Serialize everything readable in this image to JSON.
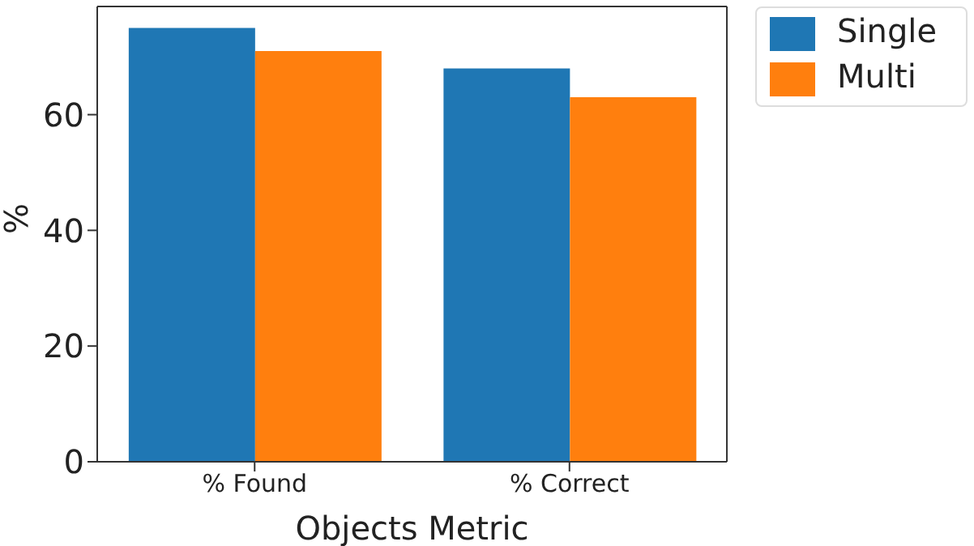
{
  "chart_data": {
    "type": "bar",
    "xlabel": "Objects Metric",
    "ylabel": "%",
    "categories": [
      "% Found",
      "% Correct"
    ],
    "series": [
      {
        "name": "Single",
        "color": "#1f77b4",
        "values": [
          75,
          68
        ]
      },
      {
        "name": "Multi",
        "color": "#ff7f0e",
        "values": [
          71,
          63
        ]
      }
    ],
    "ylim": [
      0,
      78.7
    ],
    "yticks": [
      0,
      20,
      40,
      60
    ],
    "grid": false,
    "legend": "top right"
  }
}
